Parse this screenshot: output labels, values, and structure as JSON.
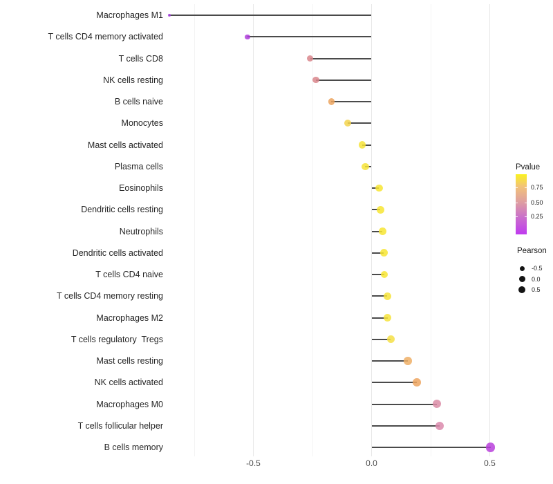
{
  "chart_data": {
    "type": "scatter",
    "variant": "lollipop",
    "title": "",
    "xlabel": "",
    "ylabel": "",
    "xlim": [
      -0.92,
      0.57
    ],
    "grid": "vertical-only",
    "x_ticks": [
      {
        "value": -0.5,
        "label": "-0.5"
      },
      {
        "value": 0.0,
        "label": "0.0"
      },
      {
        "value": 0.5,
        "label": "0.5"
      }
    ],
    "x_minor_gridlines": [
      -0.75,
      -0.25,
      0.25
    ],
    "rows": [
      {
        "label": "Macrophages M1",
        "pearson": -0.855,
        "color": "#A23ADC"
      },
      {
        "label": "T cells CD4 memory activated",
        "pearson": -0.525,
        "color": "#AE3CDB"
      },
      {
        "label": "T cells CD8",
        "pearson": -0.26,
        "color": "#D9868C"
      },
      {
        "label": "NK cells resting",
        "pearson": -0.235,
        "color": "#D9868C"
      },
      {
        "label": "B cells naive",
        "pearson": -0.17,
        "color": "#ECA45F"
      },
      {
        "label": "Monocytes",
        "pearson": -0.1,
        "color": "#F3D44C"
      },
      {
        "label": "Mast cells activated",
        "pearson": -0.04,
        "color": "#F6E338"
      },
      {
        "label": "Plasma cells",
        "pearson": -0.027,
        "color": "#F6E338"
      },
      {
        "label": "Eosinophils",
        "pearson": 0.032,
        "color": "#F7E532"
      },
      {
        "label": "Dendritic cells resting",
        "pearson": 0.037,
        "color": "#F7E532"
      },
      {
        "label": "Neutrophils",
        "pearson": 0.046,
        "color": "#F7E532"
      },
      {
        "label": "Dendritic cells activated",
        "pearson": 0.052,
        "color": "#F7E532"
      },
      {
        "label": "T cells CD4 naive",
        "pearson": 0.054,
        "color": "#F7E532"
      },
      {
        "label": "T cells CD4 memory resting",
        "pearson": 0.067,
        "color": "#F6E33B"
      },
      {
        "label": "Macrophages M2",
        "pearson": 0.068,
        "color": "#F6E33B"
      },
      {
        "label": "T cells regulatory  Tregs",
        "pearson": 0.081,
        "color": "#F5DF45"
      },
      {
        "label": "Mast cells resting",
        "pearson": 0.154,
        "color": "#EFAF66"
      },
      {
        "label": "NK cells activated",
        "pearson": 0.192,
        "color": "#EDA55F"
      },
      {
        "label": "Macrophages M0",
        "pearson": 0.275,
        "color": "#DA8CA6"
      },
      {
        "label": "T cells follicular helper",
        "pearson": 0.289,
        "color": "#DB89AB"
      },
      {
        "label": "B cells memory",
        "pearson": 0.503,
        "color": "#B93FDC"
      }
    ]
  },
  "legend": {
    "pvalue": {
      "title": "Pvalue",
      "gradient": [
        {
          "stop": 0.0,
          "color": "#FAF21F"
        },
        {
          "stop": 0.2,
          "color": "#F2C378"
        },
        {
          "stop": 0.47,
          "color": "#DE9DA2"
        },
        {
          "stop": 0.7,
          "color": "#CB72C9"
        },
        {
          "stop": 1.0,
          "color": "#BF3BEF"
        }
      ],
      "ticks": [
        {
          "label": "0.75",
          "offset": 19
        },
        {
          "label": "0.50",
          "offset": 41
        },
        {
          "label": "0.25",
          "offset": 61
        }
      ]
    },
    "pearson": {
      "title": "Pearson",
      "items": [
        {
          "label": "-0.5",
          "size": 7
        },
        {
          "label": "0.0",
          "size": 9
        },
        {
          "label": "0.5",
          "size": 10.5
        }
      ]
    }
  },
  "style": {
    "stem_color": "#4A4A4A",
    "grid_major": "#E8E8E8",
    "grid_minor": "#F4F4F4",
    "axis_text": "#4D4D4D",
    "category_text": "#262626",
    "legend_dot": "#141414",
    "background": "#FFFFFF"
  }
}
